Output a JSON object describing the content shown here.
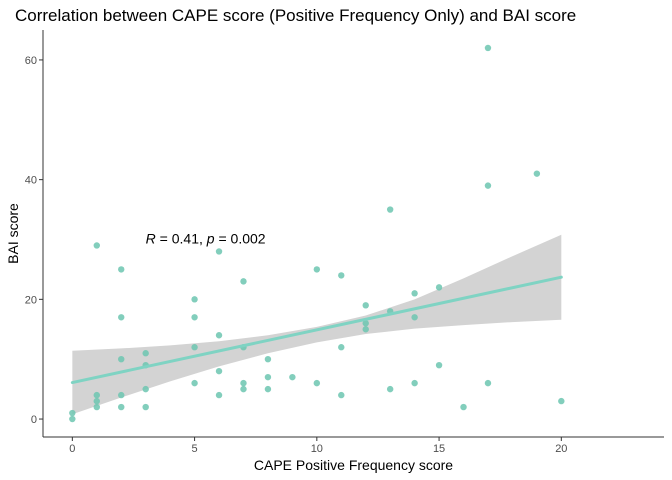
{
  "chart_data": {
    "type": "scatter",
    "title": "Correlation between CAPE score (Positive Frequency Only) and BAI score",
    "xlabel": "CAPE Positive Frequency score",
    "ylabel": "BAI score",
    "xlim": [
      -1.2,
      24.2
    ],
    "ylim": [
      -3,
      65
    ],
    "xticks": [
      0,
      5,
      10,
      15,
      20
    ],
    "yticks": [
      0,
      20,
      40,
      60
    ],
    "grid": false,
    "colors": {
      "points": "#6CC5B0",
      "fit_line": "#7FD3C3",
      "ribbon": "#D3D3D3",
      "axis": "#333333"
    },
    "annotation": {
      "r_symbol": "R",
      "r_text": " = 0.41, ",
      "p_symbol": "p",
      "p_text": " = 0.002",
      "x": 3,
      "y": 30
    },
    "fit": {
      "x": [
        0,
        20
      ],
      "y": [
        6.1,
        23.7
      ]
    },
    "confidence_band": {
      "x": [
        0,
        2,
        4,
        6,
        8,
        10,
        12,
        14,
        16,
        18,
        20
      ],
      "lower": [
        0.8,
        3.6,
        6.3,
        8.8,
        11.0,
        12.8,
        14.2,
        15.1,
        15.7,
        16.2,
        16.6
      ],
      "upper": [
        11.4,
        11.8,
        12.3,
        13.0,
        14.0,
        15.4,
        17.3,
        20.0,
        23.5,
        27.2,
        30.8
      ]
    },
    "points": [
      {
        "x": 0,
        "y": 0
      },
      {
        "x": 0,
        "y": 1
      },
      {
        "x": 1,
        "y": 29
      },
      {
        "x": 1,
        "y": 4
      },
      {
        "x": 1,
        "y": 3
      },
      {
        "x": 1,
        "y": 2
      },
      {
        "x": 2,
        "y": 25
      },
      {
        "x": 2,
        "y": 17
      },
      {
        "x": 2,
        "y": 10
      },
      {
        "x": 2,
        "y": 4
      },
      {
        "x": 2,
        "y": 2
      },
      {
        "x": 3,
        "y": 11
      },
      {
        "x": 3,
        "y": 9
      },
      {
        "x": 3,
        "y": 5
      },
      {
        "x": 3,
        "y": 2
      },
      {
        "x": 5,
        "y": 20
      },
      {
        "x": 5,
        "y": 17
      },
      {
        "x": 5,
        "y": 12
      },
      {
        "x": 5,
        "y": 6
      },
      {
        "x": 6,
        "y": 28
      },
      {
        "x": 6,
        "y": 14
      },
      {
        "x": 6,
        "y": 8
      },
      {
        "x": 6,
        "y": 4
      },
      {
        "x": 7,
        "y": 23
      },
      {
        "x": 7,
        "y": 12
      },
      {
        "x": 7,
        "y": 6
      },
      {
        "x": 7,
        "y": 5
      },
      {
        "x": 8,
        "y": 10
      },
      {
        "x": 8,
        "y": 7
      },
      {
        "x": 8,
        "y": 5
      },
      {
        "x": 9,
        "y": 7
      },
      {
        "x": 10,
        "y": 25
      },
      {
        "x": 10,
        "y": 6
      },
      {
        "x": 11,
        "y": 24
      },
      {
        "x": 11,
        "y": 12
      },
      {
        "x": 11,
        "y": 4
      },
      {
        "x": 12,
        "y": 19
      },
      {
        "x": 12,
        "y": 16
      },
      {
        "x": 12,
        "y": 15
      },
      {
        "x": 13,
        "y": 35
      },
      {
        "x": 13,
        "y": 18
      },
      {
        "x": 13,
        "y": 5
      },
      {
        "x": 14,
        "y": 21
      },
      {
        "x": 14,
        "y": 17
      },
      {
        "x": 14,
        "y": 6
      },
      {
        "x": 15,
        "y": 22
      },
      {
        "x": 15,
        "y": 9
      },
      {
        "x": 16,
        "y": 2
      },
      {
        "x": 17,
        "y": 62
      },
      {
        "x": 17,
        "y": 39
      },
      {
        "x": 17,
        "y": 6
      },
      {
        "x": 19,
        "y": 41
      },
      {
        "x": 20,
        "y": 3
      }
    ]
  }
}
